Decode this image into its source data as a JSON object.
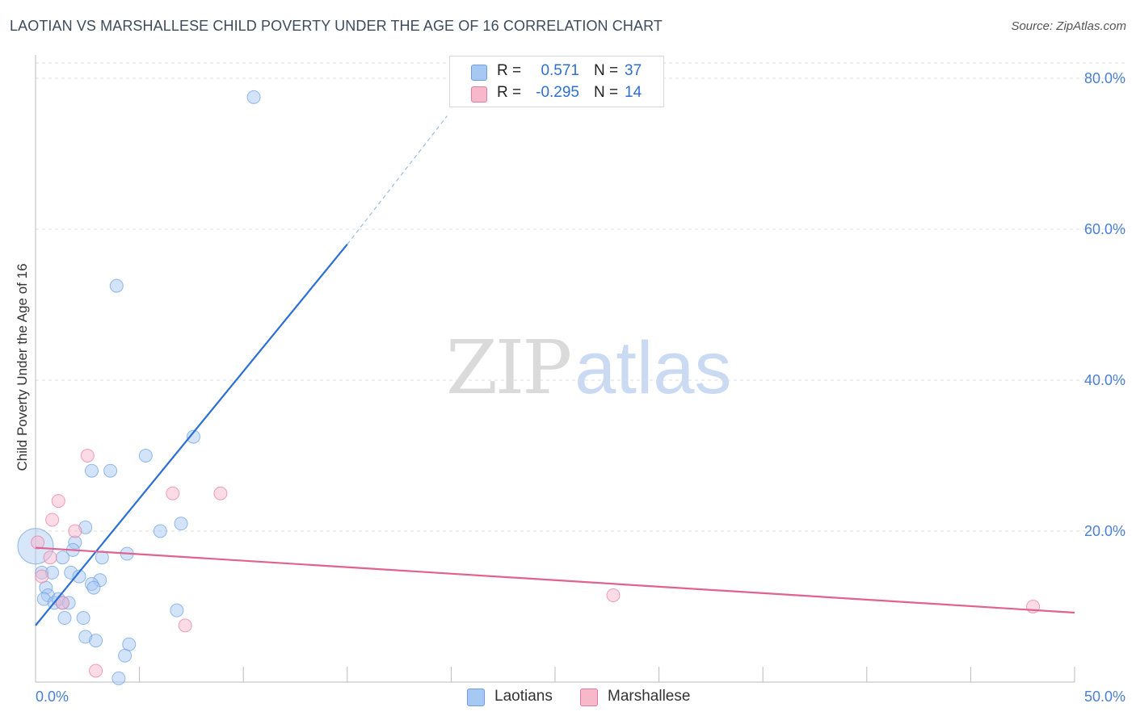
{
  "header": {
    "title": "LAOTIAN VS MARSHALLESE CHILD POVERTY UNDER THE AGE OF 16 CORRELATION CHART",
    "source": "Source: ZipAtlas.com"
  },
  "watermark": {
    "zip": "ZIP",
    "atlas": "atlas"
  },
  "legend": {
    "rows": [
      {
        "r_label": "R =",
        "r_value": "0.571",
        "n_label": "N =",
        "n_value": "37",
        "color": "#a8c8f4"
      },
      {
        "r_label": "R =",
        "r_value": "-0.295",
        "n_label": "N =",
        "n_value": "14",
        "color": "#f7b8cb"
      }
    ]
  },
  "bottom_legend": [
    {
      "label": "Laotians",
      "color": "#a8c8f4"
    },
    {
      "label": "Marshallese",
      "color": "#f7b8cb"
    }
  ],
  "chart_data": {
    "type": "scatter",
    "title": "LAOTIAN VS MARSHALLESE CHILD POVERTY UNDER THE AGE OF 16 CORRELATION CHART",
    "ylabel": "Child Poverty Under the Age of 16",
    "xlabel": "",
    "xlim": [
      0,
      50
    ],
    "ylim": [
      0,
      80
    ],
    "x_tick_labels": [
      "0.0%",
      "50.0%"
    ],
    "y_tick_labels": [
      "20.0%",
      "40.0%",
      "60.0%",
      "80.0%"
    ],
    "y_ticks": [
      20,
      40,
      60,
      80
    ],
    "grid": true,
    "series": [
      {
        "name": "Laotians",
        "color": "#6a9fe0",
        "fill": "#a8c8f4",
        "points": [
          [
            10.5,
            77.5
          ],
          [
            3.9,
            52.5
          ],
          [
            7.6,
            32.5
          ],
          [
            5.3,
            30.0
          ],
          [
            3.6,
            28.0
          ],
          [
            2.7,
            28.0
          ],
          [
            7.0,
            21.0
          ],
          [
            6.0,
            20.0
          ],
          [
            2.4,
            20.5
          ],
          [
            1.9,
            18.5
          ],
          [
            1.8,
            17.5
          ],
          [
            4.4,
            17.0
          ],
          [
            1.3,
            16.5
          ],
          [
            3.2,
            16.5
          ],
          [
            0.3,
            14.5
          ],
          [
            0.8,
            14.5
          ],
          [
            1.7,
            14.5
          ],
          [
            2.1,
            14.0
          ],
          [
            3.1,
            13.5
          ],
          [
            2.7,
            13.0
          ],
          [
            2.8,
            12.5
          ],
          [
            0.5,
            12.5
          ],
          [
            0.6,
            11.5
          ],
          [
            0.4,
            11.0
          ],
          [
            0.9,
            10.5
          ],
          [
            1.1,
            11.0
          ],
          [
            1.3,
            10.5
          ],
          [
            1.6,
            10.5
          ],
          [
            6.8,
            9.5
          ],
          [
            1.4,
            8.5
          ],
          [
            2.3,
            8.5
          ],
          [
            2.4,
            6.0
          ],
          [
            2.9,
            5.5
          ],
          [
            4.5,
            5.0
          ],
          [
            4.3,
            3.5
          ],
          [
            4.0,
            0.5
          ],
          [
            0.0,
            18.0
          ]
        ],
        "trend": {
          "x": [
            0,
            15
          ],
          "y": [
            7.5,
            58
          ],
          "dashed_to": [
            19.8,
            75
          ]
        }
      },
      {
        "name": "Marshallese",
        "color": "#e87aa0",
        "fill": "#f7b8cb",
        "points": [
          [
            2.5,
            30.0
          ],
          [
            1.1,
            24.0
          ],
          [
            6.6,
            25.0
          ],
          [
            8.9,
            25.0
          ],
          [
            0.8,
            21.5
          ],
          [
            1.9,
            20.0
          ],
          [
            0.1,
            18.5
          ],
          [
            0.7,
            16.5
          ],
          [
            0.3,
            14.0
          ],
          [
            1.3,
            10.5
          ],
          [
            27.8,
            11.5
          ],
          [
            48.0,
            10.0
          ],
          [
            7.2,
            7.5
          ],
          [
            2.9,
            1.5
          ]
        ],
        "trend": {
          "x": [
            0,
            50
          ],
          "y": [
            17.8,
            9.2
          ]
        }
      }
    ]
  }
}
